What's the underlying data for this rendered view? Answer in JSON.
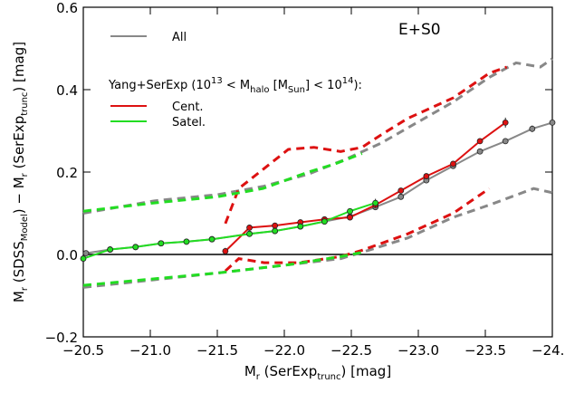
{
  "chart_data": {
    "type": "line",
    "annotation": "E+S0",
    "x_label": [
      "M",
      {
        "text": "r",
        "pos": "sub"
      },
      " (SerExp",
      {
        "text": "trunc",
        "pos": "sub"
      },
      ") [mag]"
    ],
    "y_label": [
      "M",
      {
        "text": "r",
        "pos": "sub"
      },
      " (SDSS",
      {
        "text": "Model",
        "pos": "sub"
      },
      ")  −  M",
      {
        "text": "r",
        "pos": "sub"
      },
      " (SerExp",
      {
        "text": "trunc",
        "pos": "sub"
      },
      ") [mag]"
    ],
    "legend_title": [
      "Yang+SerExp (10",
      {
        "text": "13",
        "pos": "sup"
      },
      " < M",
      {
        "text": "halo",
        "pos": "sub"
      },
      " [M",
      {
        "text": "Sun",
        "pos": "sub"
      },
      "] < 10",
      {
        "text": "14",
        "pos": "sup"
      },
      "):"
    ],
    "xlim": [
      -20.5,
      -24.0
    ],
    "ylim": [
      -0.2,
      0.6
    ],
    "xticks": [
      {
        "value": -20.5,
        "label": "−20.5"
      },
      {
        "value": -21.0,
        "label": "−21.0"
      },
      {
        "value": -21.5,
        "label": "−21.5"
      },
      {
        "value": -22.0,
        "label": "−22.0"
      },
      {
        "value": -22.5,
        "label": "−22.5"
      },
      {
        "value": -23.0,
        "label": "−23.0"
      },
      {
        "value": -23.5,
        "label": "−23.5"
      },
      {
        "value": -24.0,
        "label": "−24.0"
      }
    ],
    "yticks": [
      {
        "value": -0.2,
        "label": "−0.2"
      },
      {
        "value": 0,
        "label": "0.0"
      },
      0.2,
      0.4,
      0.6
    ],
    "hline": 0,
    "series": [
      {
        "name": "All",
        "color": "#888888",
        "x": [
          -20.52,
          -20.7,
          -20.89,
          -21.08,
          -21.27,
          -21.46,
          -21.74,
          -21.93,
          -22.12,
          -22.3,
          -22.49,
          -22.68,
          -22.87,
          -23.06,
          -23.26,
          -23.46,
          -23.65,
          -23.85,
          -24.0
        ],
        "values": [
          0.003,
          0.012,
          0.018,
          0.027,
          0.031,
          0.037,
          0.05,
          0.057,
          0.068,
          0.08,
          0.092,
          0.115,
          0.14,
          0.18,
          0.215,
          0.25,
          0.275,
          0.305,
          0.32
        ],
        "errors": [
          0.003,
          0.003,
          0.003,
          0.003,
          0.003,
          0.003,
          0.003,
          0.003,
          0.003,
          0.003,
          0.004,
          0.004,
          0.004,
          0.005,
          0.005,
          0.006,
          0.006,
          0.008,
          0.008
        ],
        "upper": {
          "x": [
            -20.5,
            -21.03,
            -21.5,
            -21.84,
            -22.18,
            -22.45,
            -22.72,
            -22.99,
            -23.26,
            -23.53,
            -23.73,
            -23.91,
            -24.0
          ],
          "values": [
            0.1,
            0.13,
            0.145,
            0.165,
            0.195,
            0.23,
            0.27,
            0.32,
            0.37,
            0.43,
            0.465,
            0.455,
            0.475
          ]
        },
        "lower": {
          "x": [
            -20.5,
            -21.5,
            -22.03,
            -22.42,
            -22.58,
            -22.92,
            -23.26,
            -23.53,
            -23.86,
            -24.0
          ],
          "values": [
            -0.08,
            -0.045,
            -0.025,
            -0.01,
            0.005,
            0.04,
            0.09,
            0.12,
            0.16,
            0.15
          ]
        }
      },
      {
        "name": "Cent.",
        "color": "#dd1111",
        "x": [
          -21.56,
          -21.74,
          -21.93,
          -22.12,
          -22.3,
          -22.49,
          -22.68,
          -22.87,
          -23.06,
          -23.26,
          -23.46,
          -23.65
        ],
        "values": [
          0.008,
          0.065,
          0.07,
          0.078,
          0.085,
          0.09,
          0.12,
          0.155,
          0.19,
          0.22,
          0.275,
          0.32
        ],
        "errors": [
          0.008,
          0.006,
          0.005,
          0.004,
          0.004,
          0.005,
          0.006,
          0.005,
          0.005,
          0.005,
          0.006,
          0.012
        ],
        "upper": {
          "x": [
            -21.56,
            -21.66,
            -22.03,
            -22.22,
            -22.42,
            -22.58,
            -22.72,
            -22.92,
            -23.26,
            -23.53,
            -23.66
          ],
          "values": [
            0.075,
            0.16,
            0.255,
            0.26,
            0.25,
            0.26,
            0.29,
            0.33,
            0.38,
            0.44,
            0.455
          ]
        },
        "lower": {
          "x": [
            -21.56,
            -21.66,
            -21.85,
            -22.11,
            -22.42,
            -22.58,
            -22.92,
            -23.26,
            -23.53
          ],
          "values": [
            -0.04,
            -0.01,
            -0.02,
            -0.02,
            -0.005,
            0.01,
            0.05,
            0.1,
            0.16
          ]
        }
      },
      {
        "name": "Satel.",
        "color": "#22dd22",
        "x": [
          -20.5,
          -20.7,
          -20.89,
          -21.08,
          -21.27,
          -21.46,
          -21.74,
          -21.93,
          -22.12,
          -22.3,
          -22.49,
          -22.68
        ],
        "values": [
          -0.01,
          0.012,
          0.018,
          0.027,
          0.031,
          0.037,
          0.05,
          0.057,
          0.068,
          0.08,
          0.105,
          0.125
        ],
        "errors": [
          0.006,
          0.003,
          0.003,
          0.003,
          0.003,
          0.003,
          0.003,
          0.003,
          0.003,
          0.004,
          0.006,
          0.01
        ],
        "upper": {
          "x": [
            -20.5,
            -21.03,
            -21.5,
            -21.84,
            -22.18,
            -22.38,
            -22.58
          ],
          "values": [
            0.105,
            0.125,
            0.14,
            0.16,
            0.2,
            0.22,
            0.245
          ]
        },
        "lower": {
          "x": [
            -20.5,
            -21.5,
            -22.03,
            -22.42,
            -22.58
          ],
          "values": [
            -0.075,
            -0.045,
            -0.025,
            -0.005,
            0.005
          ]
        }
      }
    ]
  }
}
